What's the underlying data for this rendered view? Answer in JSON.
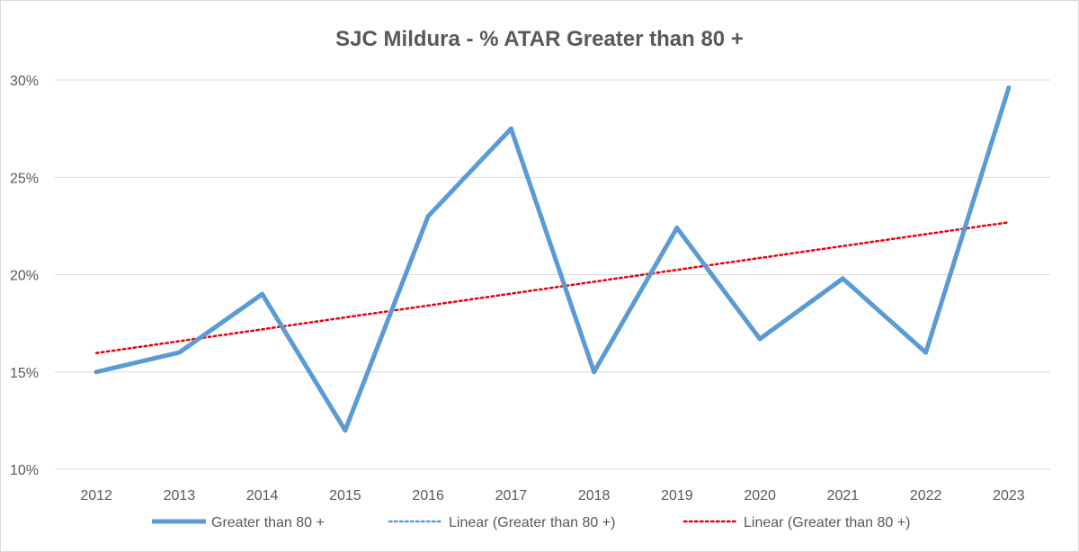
{
  "chart_data": {
    "type": "line",
    "title": "SJC Mildura -  % ATAR Greater than 80 +",
    "xlabel": "",
    "ylabel": "",
    "categories": [
      "2012",
      "2013",
      "2014",
      "2015",
      "2016",
      "2017",
      "2018",
      "2019",
      "2020",
      "2021",
      "2022",
      "2023"
    ],
    "y_tick_labels": [
      "10%",
      "15%",
      "20%",
      "25%",
      "30%"
    ],
    "ylim": [
      0.1,
      0.3
    ],
    "grid": true,
    "legend_position": "bottom",
    "series": [
      {
        "name": "Greater than 80 +",
        "values": [
          0.15,
          0.16,
          0.19,
          0.12,
          0.23,
          0.275,
          0.15,
          0.224,
          0.167,
          0.198,
          0.16,
          0.296
        ],
        "color": "#5b9bd5",
        "style": "solid"
      }
    ],
    "trendlines": [
      {
        "name": "Linear (Greater than 80 +)",
        "color": "#5b9bd5",
        "style": "dotted",
        "visible_on_plot": false
      },
      {
        "name": "Linear (Greater than 80 +)",
        "color": "#e8000b",
        "style": "dotted",
        "visible_on_plot": true,
        "start": 0.1597,
        "end": 0.2269
      }
    ]
  }
}
